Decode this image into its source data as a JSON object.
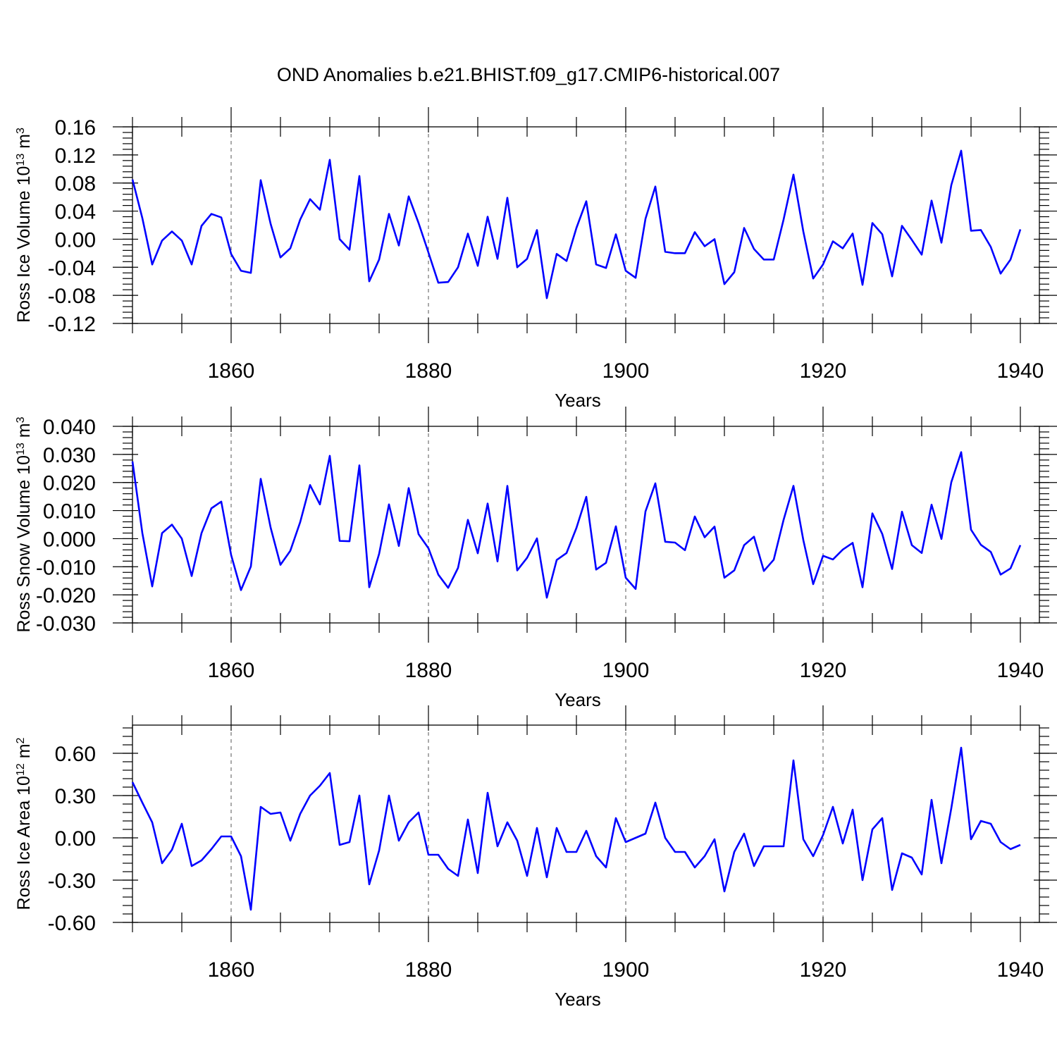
{
  "title": "OND Anomalies b.e21.BHIST.f09_g17.CMIP6-historical.007",
  "colors": {
    "line": "#0000ff",
    "axis": "#000000",
    "grid": "#555555",
    "background": "#ffffff"
  },
  "chart_data": [
    {
      "type": "line",
      "name": "Ross Ice Volume",
      "ylabel_main": "Ross Ice Volume 10",
      "ylabel_exp": "13",
      "ylabel_unit": " m",
      "ylabel_unit_exp": "3",
      "xlabel": "Years",
      "xlim": [
        1850,
        1940
      ],
      "ylim": [
        -0.12,
        0.16
      ],
      "x_ticks": [
        1860,
        1880,
        1900,
        1920,
        1940
      ],
      "y_ticks": [
        -0.12,
        -0.08,
        -0.04,
        0.0,
        0.04,
        0.08,
        0.12,
        0.16
      ],
      "y_tick_labels": [
        "-0.12",
        "-0.08",
        "-0.04",
        "0.00",
        "0.04",
        "0.08",
        "0.12",
        "0.16"
      ],
      "y_minor_step": 0.008,
      "x_start": 1850,
      "values": [
        0.085,
        0.03,
        -0.036,
        -0.002,
        0.011,
        -0.002,
        -0.036,
        0.019,
        0.036,
        0.031,
        -0.021,
        -0.045,
        -0.048,
        0.084,
        0.022,
        -0.026,
        -0.013,
        0.028,
        0.057,
        0.042,
        0.113,
        0.0,
        -0.015,
        0.09,
        -0.06,
        -0.029,
        0.036,
        -0.009,
        0.061,
        0.023,
        -0.019,
        -0.062,
        -0.061,
        -0.04,
        0.008,
        -0.038,
        0.032,
        -0.028,
        0.059,
        -0.04,
        -0.028,
        0.013,
        -0.084,
        -0.021,
        -0.031,
        0.016,
        0.054,
        -0.036,
        -0.041,
        0.007,
        -0.045,
        -0.055,
        0.029,
        0.075,
        -0.018,
        -0.02,
        -0.02,
        0.01,
        -0.01,
        0.0,
        -0.064,
        -0.047,
        0.016,
        -0.014,
        -0.029,
        -0.029,
        0.028,
        0.092,
        0.011,
        -0.056,
        -0.036,
        -0.003,
        -0.013,
        0.008,
        -0.065,
        0.023,
        0.007,
        -0.053,
        0.019,
        -0.001,
        -0.022,
        0.055,
        -0.005,
        0.077,
        0.126,
        0.012,
        0.013,
        -0.011,
        -0.049,
        -0.029,
        0.014
      ]
    },
    {
      "type": "line",
      "name": "Ross Snow Volume",
      "ylabel_main": "Ross Snow Volume 10",
      "ylabel_exp": "13",
      "ylabel_unit": " m",
      "ylabel_unit_exp": "3",
      "xlabel": "Years",
      "xlim": [
        1850,
        1940
      ],
      "ylim": [
        -0.03,
        0.04
      ],
      "x_ticks": [
        1860,
        1880,
        1900,
        1920,
        1940
      ],
      "y_ticks": [
        -0.03,
        -0.02,
        -0.01,
        0.0,
        0.01,
        0.02,
        0.03,
        0.04
      ],
      "y_tick_labels": [
        "-0.030",
        "-0.020",
        "-0.010",
        "0.000",
        "0.010",
        "0.020",
        "0.030",
        "0.040"
      ],
      "y_minor_step": 0.002,
      "x_start": 1850,
      "values": [
        0.0275,
        0.002,
        -0.017,
        0.002,
        0.005,
        0.0,
        -0.0133,
        0.002,
        0.0108,
        0.0132,
        -0.0058,
        -0.0183,
        -0.0099,
        0.0213,
        0.004,
        -0.0093,
        -0.0043,
        0.0059,
        0.0191,
        0.0122,
        0.0295,
        -0.0008,
        -0.0009,
        0.0261,
        -0.0173,
        -0.0054,
        0.0122,
        -0.0026,
        0.018,
        0.0016,
        -0.0034,
        -0.0128,
        -0.0175,
        -0.0104,
        0.0067,
        -0.0052,
        0.0125,
        -0.0081,
        0.0188,
        -0.0113,
        -0.0068,
        0.0001,
        -0.021,
        -0.0076,
        -0.0051,
        0.0038,
        0.0149,
        -0.011,
        -0.0086,
        0.0044,
        -0.0139,
        -0.0179,
        0.0097,
        0.0197,
        -0.0011,
        -0.0014,
        -0.0041,
        0.0079,
        0.0005,
        0.0043,
        -0.0139,
        -0.0113,
        -0.0023,
        0.0007,
        -0.0115,
        -0.0075,
        0.0067,
        0.0188,
        -0.0005,
        -0.0162,
        -0.0061,
        -0.0074,
        -0.0039,
        -0.0015,
        -0.0173,
        0.009,
        0.0017,
        -0.0108,
        0.0096,
        -0.0023,
        -0.0051,
        0.0121,
        -0.0001,
        0.0201,
        0.0308,
        0.0032,
        -0.0022,
        -0.0047,
        -0.0128,
        -0.0106,
        -0.0023
      ]
    },
    {
      "type": "line",
      "name": "Ross Ice Area",
      "ylabel_main": "Ross Ice Area 10",
      "ylabel_exp": "12",
      "ylabel_unit": " m",
      "ylabel_unit_exp": "2",
      "xlabel": "Years",
      "xlim": [
        1850,
        1940
      ],
      "ylim": [
        -0.6,
        0.8
      ],
      "x_ticks": [
        1860,
        1880,
        1900,
        1920,
        1940
      ],
      "y_ticks": [
        -0.6,
        -0.3,
        0.0,
        0.3,
        0.6
      ],
      "y_tick_labels": [
        "-0.60",
        "-0.30",
        "0.00",
        "0.30",
        "0.60"
      ],
      "y_minor_step": 0.06,
      "x_start": 1850,
      "values": [
        0.395,
        0.25,
        0.11,
        -0.18,
        -0.085,
        0.1,
        -0.2,
        -0.16,
        -0.08,
        0.01,
        0.01,
        -0.13,
        -0.51,
        0.22,
        0.17,
        0.18,
        -0.02,
        0.17,
        0.3,
        0.37,
        0.46,
        -0.05,
        -0.03,
        0.3,
        -0.33,
        -0.09,
        0.3,
        -0.02,
        0.11,
        0.18,
        -0.12,
        -0.12,
        -0.22,
        -0.27,
        0.13,
        -0.25,
        0.32,
        -0.06,
        0.11,
        -0.02,
        -0.27,
        0.07,
        -0.28,
        0.07,
        -0.1,
        -0.1,
        0.05,
        -0.13,
        -0.21,
        0.14,
        -0.03,
        0.0,
        0.03,
        0.25,
        0.0,
        -0.1,
        -0.1,
        -0.21,
        -0.13,
        -0.01,
        -0.38,
        -0.1,
        0.03,
        -0.2,
        -0.06,
        -0.06,
        -0.06,
        0.55,
        -0.01,
        -0.13,
        0.02,
        0.22,
        -0.04,
        0.2,
        -0.3,
        0.06,
        0.14,
        -0.37,
        -0.11,
        -0.14,
        -0.26,
        0.27,
        -0.18,
        0.21,
        0.64,
        -0.01,
        0.12,
        0.1,
        -0.03,
        -0.08,
        -0.05
      ]
    }
  ]
}
